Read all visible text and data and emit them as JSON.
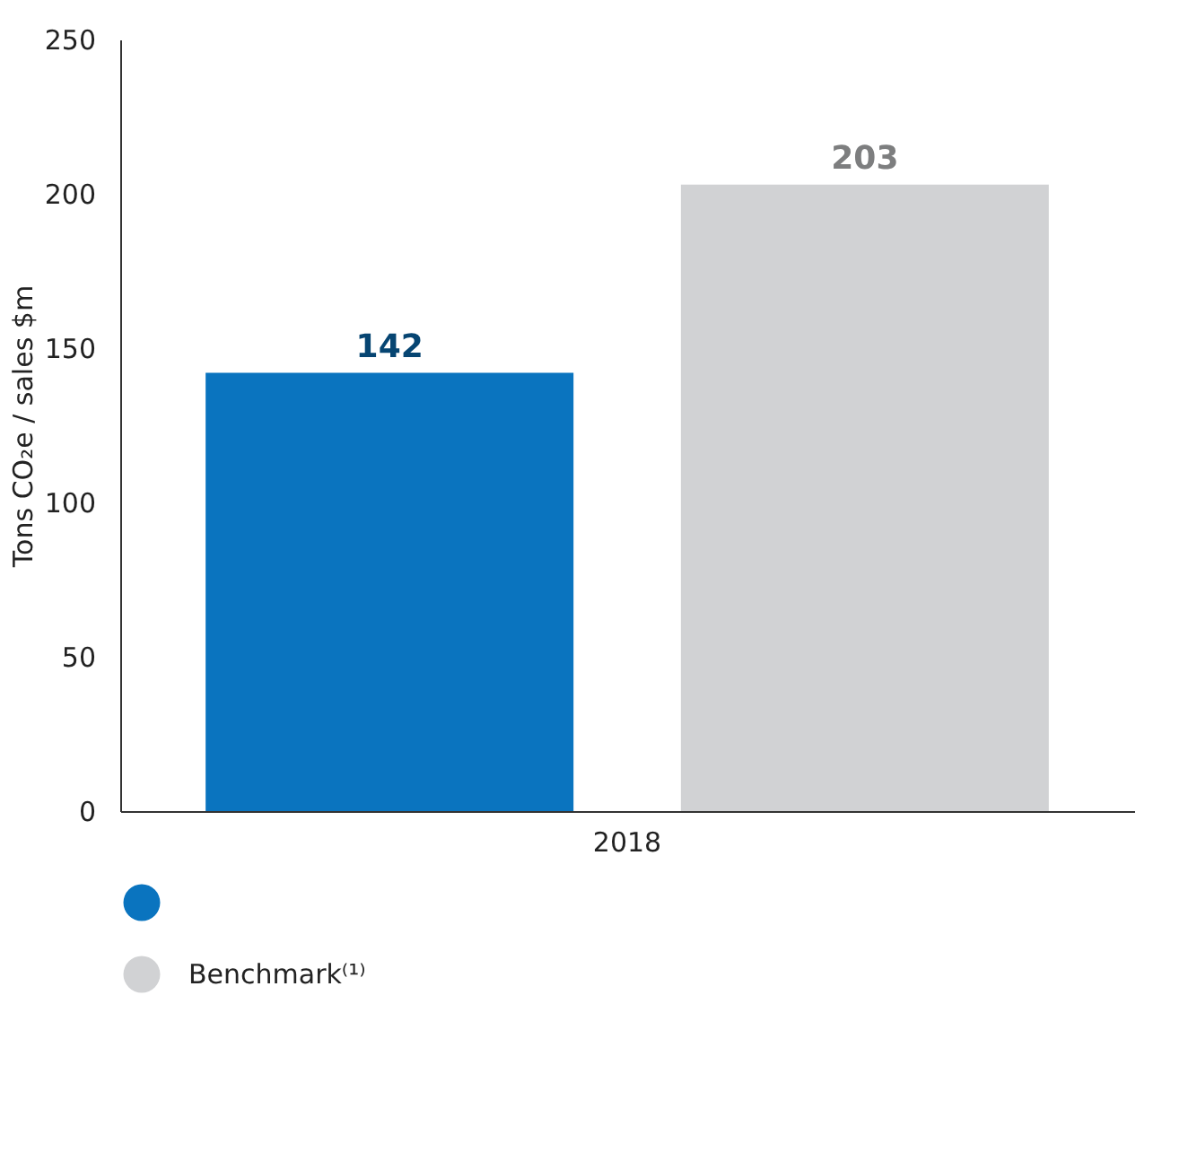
{
  "chart_data": {
    "type": "bar",
    "ylabel": "Tons CO₂e / sales $m",
    "categories": [
      "2018"
    ],
    "series": [
      {
        "color": "#0a74bf",
        "values": [
          142
        ]
      },
      {
        "name": "Benchmark⁽¹⁾",
        "color": "#d1d2d4",
        "values": [
          203
        ]
      }
    ],
    "ylim": [
      0,
      250
    ],
    "yticks": [
      0,
      50,
      100,
      150,
      200,
      250
    ],
    "grid": false,
    "data_labels": true,
    "legend": "bottom left"
  }
}
